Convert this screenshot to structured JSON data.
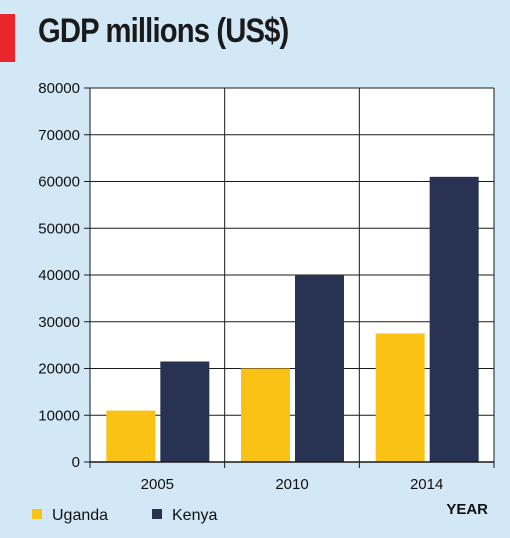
{
  "chart_data": {
    "type": "bar",
    "title": "GDP millions (US$)",
    "xlabel": "YEAR",
    "ylabel": "",
    "categories": [
      "2005",
      "2010",
      "2014"
    ],
    "series": [
      {
        "name": "Uganda",
        "color": "#f9c215",
        "values": [
          11000,
          20000,
          27500
        ]
      },
      {
        "name": "Kenya",
        "color": "#283252",
        "values": [
          21500,
          40000,
          61000
        ]
      }
    ],
    "ylim": [
      0,
      80000
    ],
    "yticks": [
      "0",
      "10000",
      "20000",
      "30000",
      "40000",
      "50000",
      "60000",
      "70000",
      "80000"
    ],
    "grid": true,
    "legend": "bottom-left",
    "colors": {
      "title_accent": "#e8262b",
      "background": "#d2e8f6",
      "plot_background": "#ffffff"
    }
  }
}
